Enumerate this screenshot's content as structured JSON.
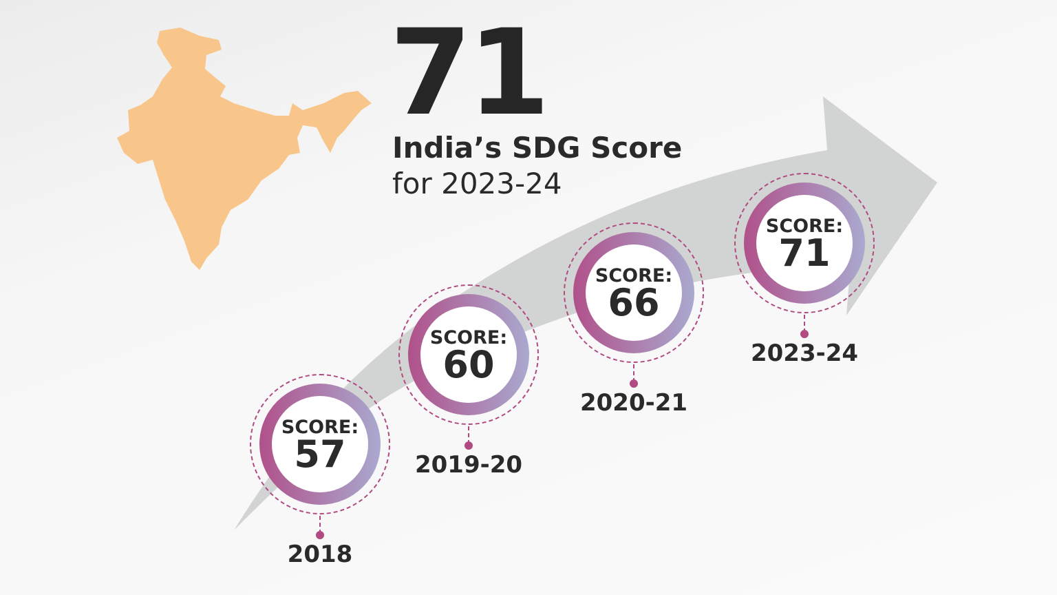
{
  "headline": {
    "value": "71",
    "title": "India’s SDG Score",
    "subtitle": "for 2023-24"
  },
  "score_label": "SCORE:",
  "milestones": [
    {
      "year": "2018",
      "score": "57"
    },
    {
      "year": "2019-20",
      "score": "60"
    },
    {
      "year": "2020-21",
      "score": "66"
    },
    {
      "year": "2023-24",
      "score": "71"
    }
  ],
  "colors": {
    "map": "#f8c68a",
    "arrow": "#d2d3d3",
    "ring_start": "#b0518a",
    "ring_end": "#a9a9cf",
    "dash": "#b04a80"
  },
  "icons": [
    "india-map-icon",
    "trend-arrow-icon"
  ]
}
